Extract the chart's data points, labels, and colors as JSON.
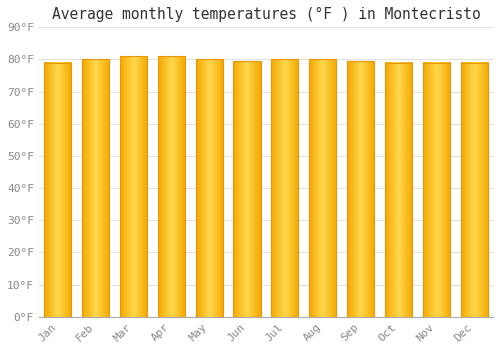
{
  "title": "Average monthly temperatures (°F ) in Montecristo",
  "months": [
    "Jan",
    "Feb",
    "Mar",
    "Apr",
    "May",
    "Jun",
    "Jul",
    "Aug",
    "Sep",
    "Oct",
    "Nov",
    "Dec"
  ],
  "values": [
    79,
    80,
    81,
    81,
    80,
    79.5,
    80,
    80,
    79.5,
    79,
    79,
    79
  ],
  "bar_color_edge": "#E8950A",
  "bar_color_left": "#F5A800",
  "bar_color_mid": "#FFD84D",
  "bar_color_right": "#F5A800",
  "ylim": [
    0,
    90
  ],
  "ytick_step": 10,
  "background_color": "#FFFFFF",
  "grid_color": "#E0E0E0",
  "title_fontsize": 10.5,
  "tick_fontsize": 8,
  "font_family": "monospace"
}
